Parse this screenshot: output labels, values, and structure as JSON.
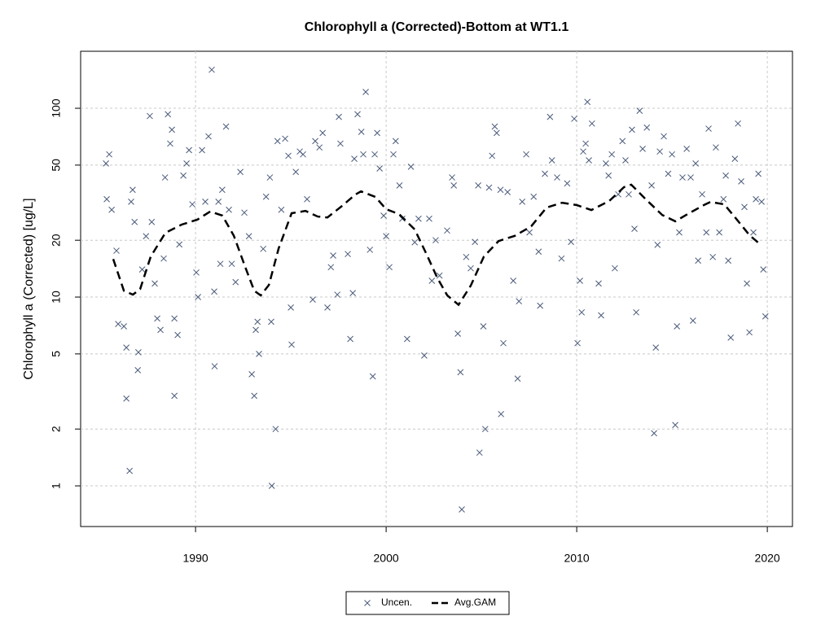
{
  "chart_data": {
    "type": "scatter",
    "title": "Chlorophyll a (Corrected)-Bottom at WT1.1",
    "y_label": "Chlorophyll a (Corrected) [ug/L]",
    "xlim": [
      1983.97,
      2021.32
    ],
    "xticks": [
      1990,
      2000,
      2010,
      2020
    ],
    "ylim": [
      0.609,
      200.4
    ],
    "yticks": [
      1,
      2,
      5,
      10,
      20,
      50,
      100
    ],
    "y_scale": "log",
    "grid": true,
    "legend": "bottom",
    "series": [
      {
        "name": "Uncen.",
        "kind": "scatter",
        "color": "#4a5a7a",
        "x": [
          1985.3,
          1985.47,
          1985.34,
          1985.6,
          1985.85,
          1985.94,
          1986.24,
          1986.37,
          1986.37,
          1986.54,
          1986.62,
          1986.7,
          1986.8,
          1986.97,
          1987.0,
          1987.2,
          1987.4,
          1987.6,
          1987.7,
          1987.86,
          1987.99,
          1988.16,
          1988.33,
          1988.4,
          1988.55,
          1988.67,
          1988.76,
          1988.89,
          1988.89,
          1989.06,
          1989.15,
          1989.36,
          1989.53,
          1989.66,
          1989.83,
          1990.04,
          1990.13,
          1990.34,
          1990.51,
          1990.68,
          1990.85,
          1990.98,
          1991.0,
          1991.2,
          1991.3,
          1991.4,
          1991.6,
          1991.75,
          1991.9,
          1992.1,
          1992.35,
          1992.56,
          1992.8,
          1992.95,
          1993.08,
          1993.16,
          1993.25,
          1993.33,
          1993.55,
          1993.7,
          1993.9,
          1993.97,
          1994.0,
          1994.2,
          1994.3,
          1994.5,
          1994.7,
          1994.87,
          1995.0,
          1995.04,
          1995.26,
          1995.47,
          1995.64,
          1995.85,
          1996.15,
          1996.28,
          1996.5,
          1996.67,
          1996.92,
          1997.1,
          1997.22,
          1997.44,
          1997.52,
          1997.6,
          1997.99,
          1998.12,
          1998.25,
          1998.33,
          1998.5,
          1998.7,
          1998.8,
          1998.93,
          1999.15,
          1999.3,
          1999.4,
          1999.53,
          1999.66,
          1999.87,
          2000.0,
          2000.17,
          2000.38,
          2000.5,
          2000.7,
          2000.85,
          2001.1,
          2001.3,
          2001.5,
          2001.7,
          2002.0,
          2002.26,
          2002.4,
          2002.6,
          2002.8,
          2003.2,
          2003.46,
          2003.55,
          2003.76,
          2003.9,
          2003.97,
          2004.2,
          2004.44,
          2004.66,
          2004.83,
          2004.9,
          2005.1,
          2005.2,
          2005.4,
          2005.56,
          2005.7,
          2005.8,
          2006.0,
          2006.03,
          2006.15,
          2006.37,
          2006.67,
          2006.9,
          2006.97,
          2007.14,
          2007.35,
          2007.52,
          2007.74,
          2008.0,
          2008.08,
          2008.33,
          2008.6,
          2008.7,
          2008.97,
          2009.2,
          2009.5,
          2009.7,
          2009.87,
          2010.04,
          2010.17,
          2010.26,
          2010.34,
          2010.47,
          2010.56,
          2010.64,
          2010.8,
          2011.15,
          2011.28,
          2011.53,
          2011.67,
          2011.84,
          2012.0,
          2012.18,
          2012.4,
          2012.56,
          2012.73,
          2012.9,
          2013.03,
          2013.12,
          2013.3,
          2013.46,
          2013.68,
          2013.93,
          2014.06,
          2014.15,
          2014.24,
          2014.36,
          2014.57,
          2014.8,
          2015.0,
          2015.17,
          2015.26,
          2015.38,
          2015.55,
          2015.77,
          2015.98,
          2016.1,
          2016.24,
          2016.37,
          2016.58,
          2016.8,
          2016.92,
          2017.14,
          2017.3,
          2017.48,
          2017.7,
          2017.82,
          2017.95,
          2018.08,
          2018.3,
          2018.46,
          2018.63,
          2018.8,
          2018.93,
          2019.06,
          2019.27,
          2019.4,
          2019.53,
          2019.7,
          2019.79,
          2019.9
        ],
        "values": [
          51,
          57,
          33,
          29,
          17.6,
          7.2,
          7.0,
          5.4,
          2.9,
          1.2,
          32,
          37,
          25,
          4.1,
          5.1,
          14,
          21,
          91,
          25,
          11.8,
          7.7,
          6.7,
          16,
          43,
          93,
          65,
          77,
          7.7,
          3.0,
          6.3,
          19,
          44,
          51,
          60,
          31,
          13.5,
          10,
          60,
          32,
          71,
          160,
          10.7,
          4.3,
          32,
          15,
          37,
          80,
          29,
          15,
          12,
          46,
          28,
          21,
          3.9,
          3.0,
          6.7,
          7.4,
          5.0,
          18,
          34,
          43,
          7.4,
          1.0,
          2.0,
          67,
          29,
          69,
          56,
          8.8,
          5.6,
          46,
          59,
          57,
          33,
          9.7,
          67,
          62,
          74,
          8.8,
          14.4,
          16.6,
          10.3,
          90,
          65,
          16.9,
          6.0,
          10.5,
          54,
          93,
          75,
          57,
          122,
          17.8,
          3.8,
          57,
          74,
          48,
          27,
          21,
          14.4,
          57,
          67,
          39,
          26,
          6.0,
          49,
          19.5,
          26,
          4.9,
          26,
          12.2,
          20,
          13,
          22.5,
          43,
          39,
          6.4,
          4.0,
          0.75,
          16.3,
          14.2,
          19.6,
          39,
          1.5,
          7.0,
          2.0,
          38,
          56,
          80,
          74,
          37,
          2.4,
          5.7,
          36,
          12.2,
          3.7,
          9.5,
          32,
          57,
          22,
          34,
          17.4,
          9.0,
          45,
          90,
          53,
          43,
          16,
          40,
          19.6,
          88,
          5.7,
          12.2,
          8.3,
          59,
          65,
          108,
          53,
          83,
          11.8,
          8.0,
          51,
          44,
          57,
          14.2,
          35,
          67,
          53,
          35,
          77,
          23,
          8.3,
          97,
          61,
          79,
          39,
          1.9,
          5.4,
          18.9,
          59,
          71,
          45,
          57,
          2.1,
          7.0,
          22,
          43,
          61,
          43,
          7.5,
          51,
          15.6,
          35,
          22,
          78,
          16.3,
          62,
          22,
          33,
          44,
          15.6,
          6.1,
          54,
          83,
          41,
          30,
          11.8,
          6.5,
          22,
          33,
          45,
          32,
          14,
          7.9
        ]
      },
      {
        "name": "Avg.GAM",
        "kind": "line",
        "color": "#000000",
        "dash": "dashed",
        "x": [
          1985.68,
          1986.24,
          1986.71,
          1987.09,
          1987.65,
          1988.42,
          1989.27,
          1990.09,
          1990.77,
          1991.41,
          1992.01,
          1992.61,
          1993.08,
          1993.42,
          1993.85,
          1994.36,
          1995.04,
          1995.77,
          1996.41,
          1996.92,
          1997.69,
          1998.38,
          1998.68,
          1999.44,
          2000.0,
          2000.68,
          2001.5,
          2002.14,
          2002.69,
          2003.21,
          2003.8,
          2004.44,
          2005.13,
          2005.9,
          2006.75,
          2007.61,
          2008.42,
          2009.23,
          2010.0,
          2010.77,
          2011.71,
          2012.48,
          2012.86,
          2013.59,
          2014.49,
          2015.17,
          2015.9,
          2016.67,
          2017.01,
          2017.74,
          2018.38,
          2019.06,
          2019.66
        ],
        "values": [
          15.9,
          10.8,
          10.3,
          11.0,
          16.4,
          21.9,
          24.2,
          25.7,
          28.4,
          27.0,
          21.1,
          14.4,
          10.8,
          10.2,
          11.6,
          18.1,
          27.8,
          28.6,
          26.7,
          26.4,
          30.4,
          34.9,
          36.3,
          33.9,
          29.2,
          27.5,
          22.8,
          16.7,
          12.6,
          10.2,
          9.1,
          11.5,
          16.4,
          19.8,
          21.1,
          23.7,
          29.8,
          31.6,
          30.7,
          28.9,
          32.3,
          38.2,
          39.4,
          33.2,
          27.2,
          25.2,
          27.8,
          30.7,
          31.9,
          31.0,
          25.9,
          21.3,
          18.9
        ]
      }
    ]
  }
}
